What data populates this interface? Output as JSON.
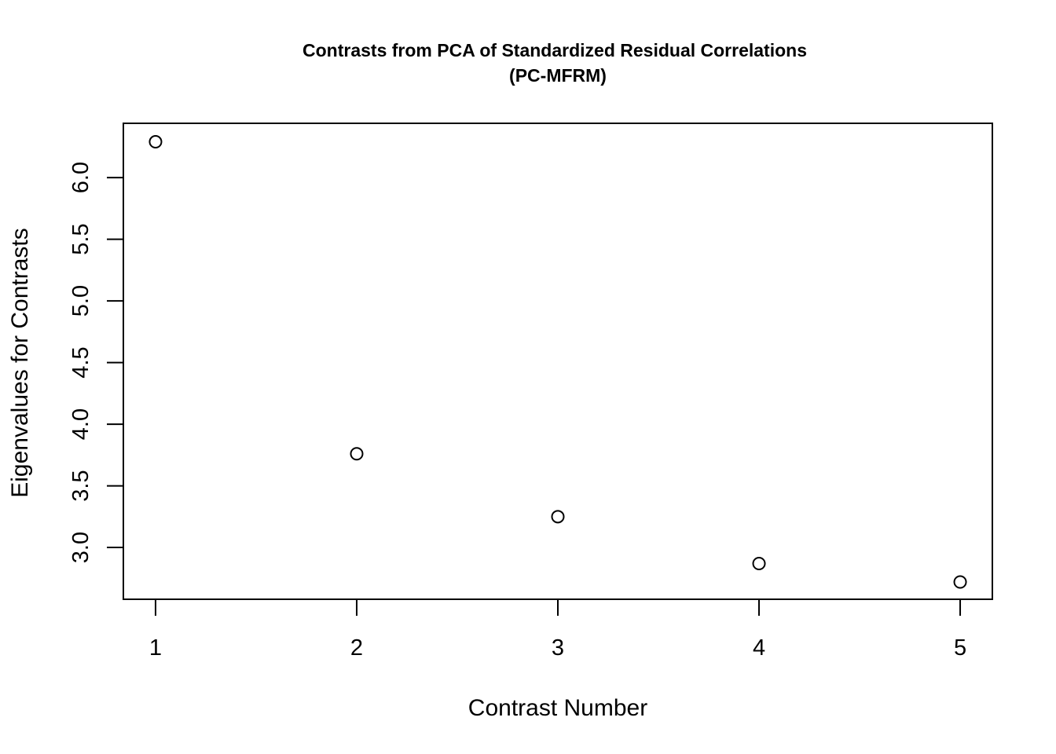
{
  "chart_data": {
    "type": "scatter",
    "title": "Contrasts from PCA of Standardized Residual Correlations",
    "subtitle": "(PC-MFRM)",
    "xlabel": "Contrast Number",
    "ylabel": "Eigenvalues for Contrasts",
    "x": [
      1,
      2,
      3,
      4,
      5
    ],
    "y": [
      6.29,
      3.76,
      3.25,
      2.87,
      2.72
    ],
    "xlim": [
      0.84,
      5.16
    ],
    "ylim": [
      2.58,
      6.44
    ],
    "xticks": [
      1,
      2,
      3,
      4,
      5
    ],
    "xtick_labels": [
      "1",
      "2",
      "3",
      "4",
      "5"
    ],
    "yticks": [
      3.0,
      3.5,
      4.0,
      4.5,
      5.0,
      5.5,
      6.0
    ],
    "ytick_labels": [
      "3.0",
      "3.5",
      "4.0",
      "4.5",
      "5.0",
      "5.5",
      "6.0"
    ],
    "marker": "open-circle",
    "grid": false,
    "colors": {
      "point": "#000000",
      "axis": "#000000",
      "background": "#ffffff"
    }
  }
}
